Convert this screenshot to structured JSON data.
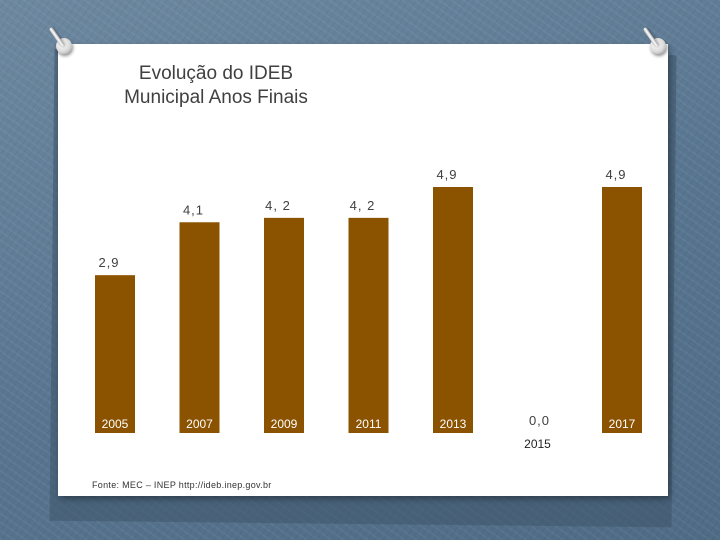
{
  "slide": {
    "title_line1": "Evolução do IDEB",
    "title_line2": "Municipal Anos Finais",
    "source": "Fonte: MEC – INEP  http://ideb.inep.gov.br"
  },
  "colors": {
    "bar": "#8B5200",
    "text": "#404040"
  },
  "chart_data": {
    "type": "bar",
    "title": "Evolução do IDEB Municipal Anos Finais",
    "categories": [
      "2005",
      "2007",
      "2009",
      "2011",
      "2013",
      "2015",
      "2017"
    ],
    "values": [
      2.9,
      4.1,
      4.2,
      4.2,
      4.9,
      0.0,
      4.9
    ],
    "data_labels": [
      "2,9",
      "4,1",
      "4, 2",
      "4, 2",
      "4,9",
      "0,0",
      "4,9"
    ],
    "xlabel": "",
    "ylabel": "",
    "ylim": [
      0,
      4.9
    ],
    "grid": false,
    "legend": "none"
  }
}
